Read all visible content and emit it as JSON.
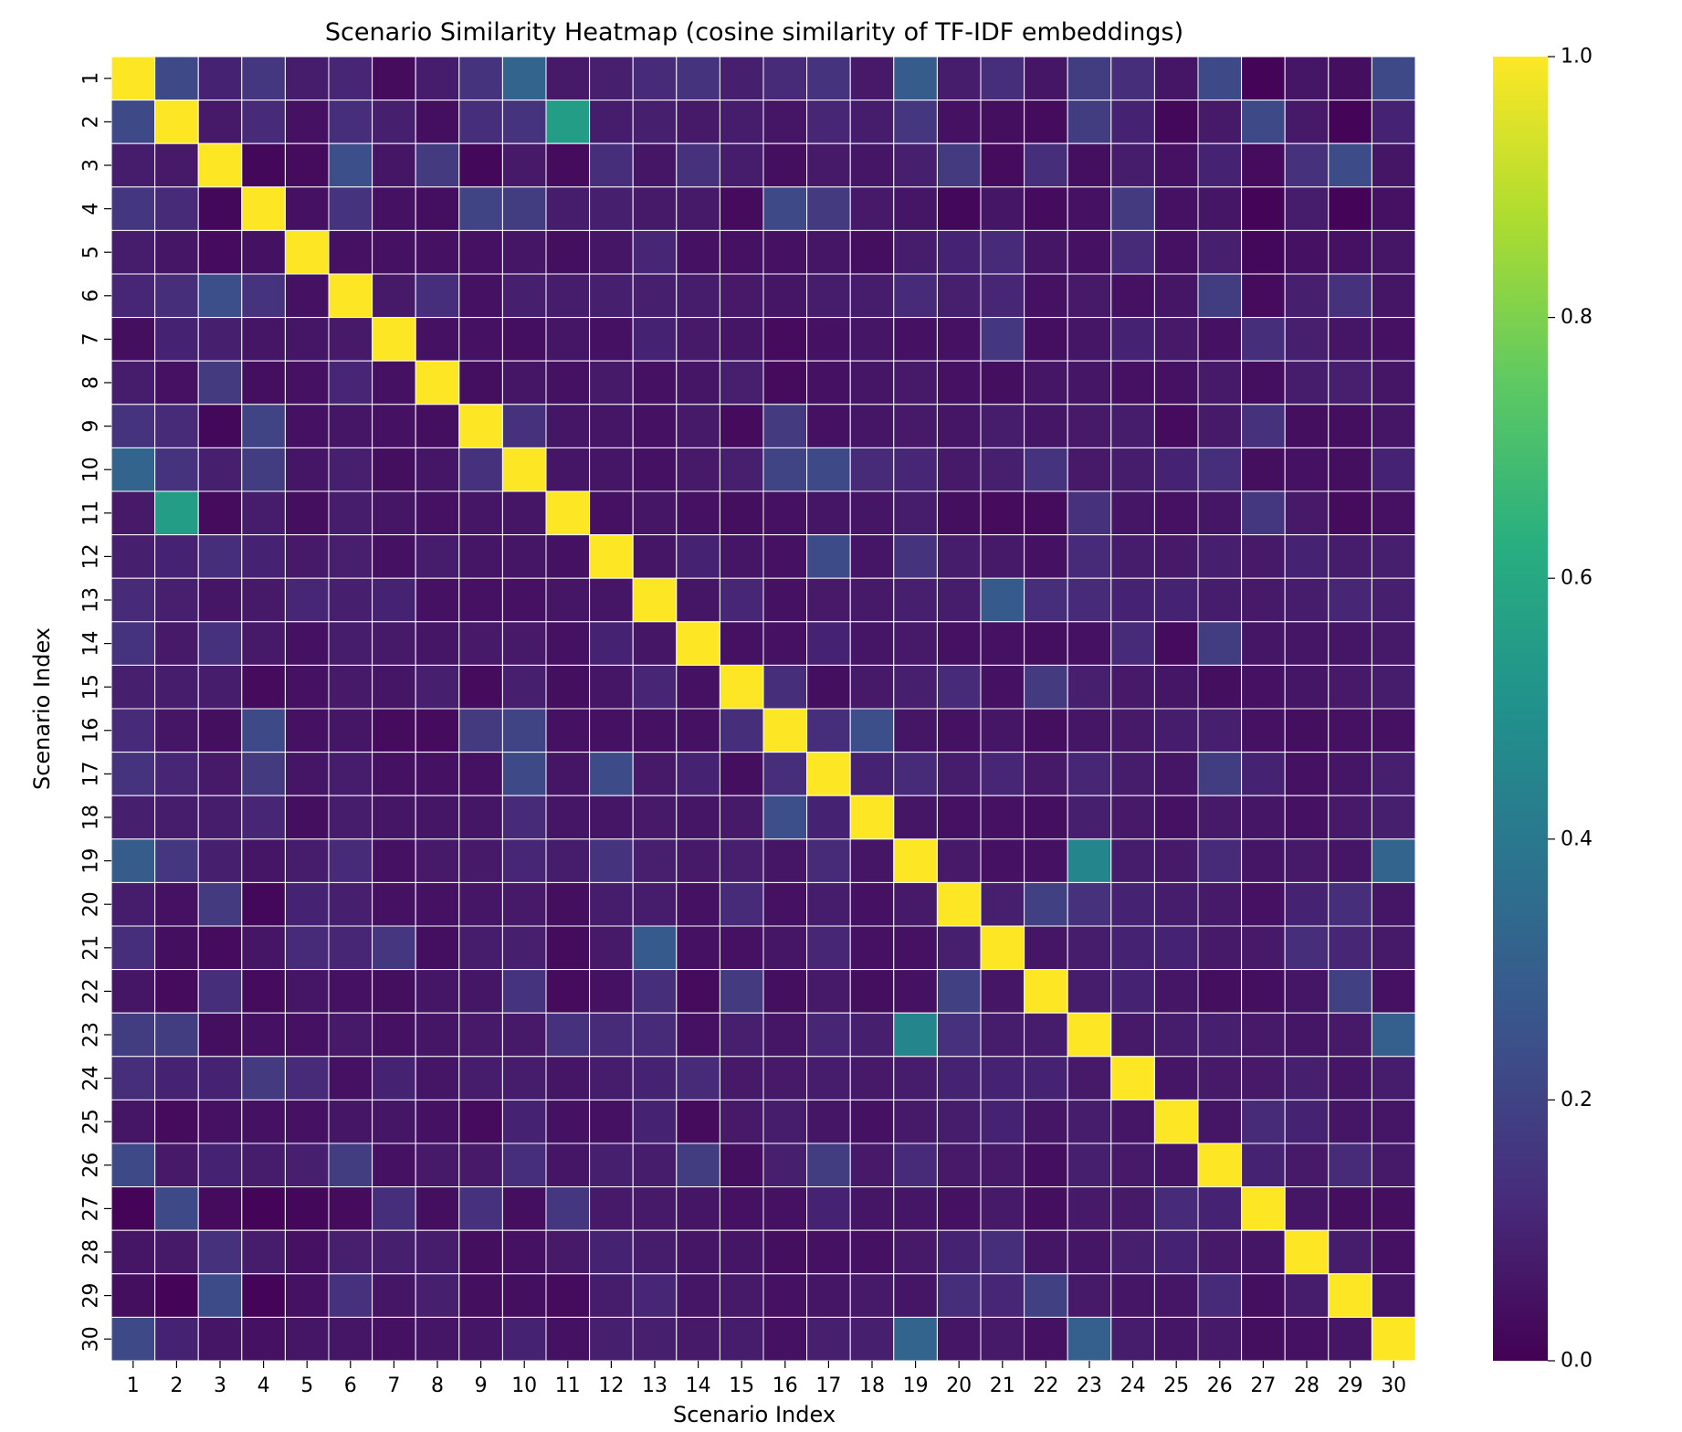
{
  "chart_data": {
    "type": "heatmap",
    "title": "Scenario Similarity Heatmap (cosine similarity of TF-IDF embeddings)",
    "xlabel": "Scenario Index",
    "ylabel": "Scenario Index",
    "x_categories": [
      "1",
      "2",
      "3",
      "4",
      "5",
      "6",
      "7",
      "8",
      "9",
      "10",
      "11",
      "12",
      "13",
      "14",
      "15",
      "16",
      "17",
      "18",
      "19",
      "20",
      "21",
      "22",
      "23",
      "24",
      "25",
      "26",
      "27",
      "28",
      "29",
      "30"
    ],
    "y_categories": [
      "1",
      "2",
      "3",
      "4",
      "5",
      "6",
      "7",
      "8",
      "9",
      "10",
      "11",
      "12",
      "13",
      "14",
      "15",
      "16",
      "17",
      "18",
      "19",
      "20",
      "21",
      "22",
      "23",
      "24",
      "25",
      "26",
      "27",
      "28",
      "29",
      "30"
    ],
    "colormap": "viridis",
    "vmin": 0.0,
    "vmax": 1.0,
    "colorbar_ticks": [
      "0.0",
      "0.2",
      "0.4",
      "0.6",
      "0.8",
      "1.0"
    ],
    "values": [
      [
        1.0,
        0.22,
        0.1,
        0.16,
        0.08,
        0.11,
        0.03,
        0.08,
        0.15,
        0.32,
        0.07,
        0.09,
        0.12,
        0.15,
        0.09,
        0.12,
        0.15,
        0.07,
        0.29,
        0.08,
        0.13,
        0.06,
        0.18,
        0.13,
        0.06,
        0.22,
        0.01,
        0.06,
        0.04,
        0.22
      ],
      [
        0.22,
        1.0,
        0.07,
        0.12,
        0.05,
        0.13,
        0.09,
        0.04,
        0.13,
        0.15,
        0.55,
        0.08,
        0.09,
        0.07,
        0.08,
        0.06,
        0.11,
        0.08,
        0.16,
        0.05,
        0.04,
        0.03,
        0.18,
        0.1,
        0.02,
        0.07,
        0.22,
        0.07,
        0.01,
        0.1
      ],
      [
        0.08,
        0.07,
        1.0,
        0.02,
        0.03,
        0.24,
        0.06,
        0.17,
        0.02,
        0.07,
        0.03,
        0.13,
        0.06,
        0.14,
        0.08,
        0.04,
        0.07,
        0.06,
        0.09,
        0.17,
        0.03,
        0.13,
        0.04,
        0.08,
        0.05,
        0.1,
        0.03,
        0.14,
        0.23,
        0.06
      ],
      [
        0.16,
        0.12,
        0.02,
        1.0,
        0.05,
        0.15,
        0.05,
        0.04,
        0.2,
        0.18,
        0.08,
        0.09,
        0.07,
        0.07,
        0.03,
        0.22,
        0.17,
        0.07,
        0.06,
        0.02,
        0.06,
        0.03,
        0.05,
        0.17,
        0.05,
        0.06,
        0.01,
        0.08,
        0.01,
        0.05
      ],
      [
        0.08,
        0.06,
        0.03,
        0.05,
        1.0,
        0.05,
        0.05,
        0.05,
        0.05,
        0.06,
        0.04,
        0.06,
        0.11,
        0.05,
        0.05,
        0.05,
        0.06,
        0.04,
        0.08,
        0.1,
        0.12,
        0.06,
        0.05,
        0.12,
        0.05,
        0.09,
        0.02,
        0.05,
        0.05,
        0.06
      ],
      [
        0.11,
        0.13,
        0.24,
        0.15,
        0.05,
        1.0,
        0.07,
        0.13,
        0.05,
        0.09,
        0.08,
        0.09,
        0.09,
        0.08,
        0.07,
        0.06,
        0.08,
        0.08,
        0.12,
        0.09,
        0.11,
        0.05,
        0.07,
        0.05,
        0.06,
        0.18,
        0.03,
        0.09,
        0.14,
        0.06
      ],
      [
        0.04,
        0.1,
        0.09,
        0.06,
        0.06,
        0.07,
        1.0,
        0.05,
        0.05,
        0.04,
        0.06,
        0.05,
        0.1,
        0.07,
        0.06,
        0.03,
        0.05,
        0.06,
        0.05,
        0.05,
        0.16,
        0.04,
        0.06,
        0.1,
        0.07,
        0.05,
        0.13,
        0.09,
        0.06,
        0.05
      ],
      [
        0.08,
        0.05,
        0.17,
        0.04,
        0.05,
        0.11,
        0.05,
        1.0,
        0.04,
        0.06,
        0.05,
        0.07,
        0.05,
        0.06,
        0.09,
        0.03,
        0.05,
        0.06,
        0.07,
        0.05,
        0.04,
        0.06,
        0.06,
        0.05,
        0.05,
        0.07,
        0.04,
        0.08,
        0.09,
        0.06
      ],
      [
        0.15,
        0.12,
        0.02,
        0.2,
        0.05,
        0.06,
        0.05,
        0.04,
        1.0,
        0.14,
        0.06,
        0.06,
        0.05,
        0.07,
        0.03,
        0.17,
        0.05,
        0.06,
        0.07,
        0.06,
        0.08,
        0.06,
        0.07,
        0.08,
        0.03,
        0.07,
        0.14,
        0.04,
        0.04,
        0.06
      ],
      [
        0.32,
        0.15,
        0.09,
        0.18,
        0.06,
        0.09,
        0.04,
        0.06,
        0.14,
        1.0,
        0.06,
        0.06,
        0.05,
        0.07,
        0.09,
        0.2,
        0.22,
        0.12,
        0.11,
        0.07,
        0.09,
        0.15,
        0.07,
        0.08,
        0.1,
        0.13,
        0.04,
        0.05,
        0.04,
        0.1
      ],
      [
        0.07,
        0.55,
        0.03,
        0.08,
        0.04,
        0.08,
        0.06,
        0.05,
        0.06,
        0.06,
        1.0,
        0.05,
        0.06,
        0.05,
        0.04,
        0.05,
        0.06,
        0.06,
        0.08,
        0.04,
        0.03,
        0.03,
        0.14,
        0.06,
        0.05,
        0.06,
        0.16,
        0.07,
        0.03,
        0.05
      ],
      [
        0.09,
        0.1,
        0.13,
        0.1,
        0.07,
        0.09,
        0.05,
        0.08,
        0.06,
        0.06,
        0.05,
        1.0,
        0.06,
        0.1,
        0.06,
        0.05,
        0.23,
        0.06,
        0.15,
        0.08,
        0.07,
        0.05,
        0.12,
        0.08,
        0.07,
        0.09,
        0.07,
        0.1,
        0.08,
        0.09
      ],
      [
        0.12,
        0.09,
        0.06,
        0.07,
        0.11,
        0.09,
        0.1,
        0.05,
        0.05,
        0.05,
        0.06,
        0.06,
        1.0,
        0.06,
        0.11,
        0.05,
        0.07,
        0.07,
        0.09,
        0.08,
        0.28,
        0.13,
        0.12,
        0.1,
        0.1,
        0.08,
        0.07,
        0.08,
        0.11,
        0.09
      ],
      [
        0.15,
        0.07,
        0.14,
        0.07,
        0.05,
        0.08,
        0.07,
        0.06,
        0.07,
        0.07,
        0.05,
        0.1,
        0.06,
        1.0,
        0.05,
        0.05,
        0.1,
        0.06,
        0.07,
        0.05,
        0.05,
        0.04,
        0.05,
        0.12,
        0.03,
        0.18,
        0.06,
        0.06,
        0.06,
        0.07
      ],
      [
        0.09,
        0.08,
        0.08,
        0.03,
        0.05,
        0.07,
        0.06,
        0.09,
        0.03,
        0.09,
        0.04,
        0.06,
        0.11,
        0.05,
        1.0,
        0.13,
        0.04,
        0.07,
        0.09,
        0.12,
        0.05,
        0.17,
        0.09,
        0.07,
        0.06,
        0.04,
        0.05,
        0.06,
        0.07,
        0.08
      ],
      [
        0.12,
        0.06,
        0.04,
        0.22,
        0.05,
        0.06,
        0.03,
        0.03,
        0.17,
        0.2,
        0.05,
        0.05,
        0.05,
        0.05,
        0.13,
        1.0,
        0.13,
        0.24,
        0.06,
        0.05,
        0.06,
        0.04,
        0.06,
        0.07,
        0.08,
        0.09,
        0.05,
        0.04,
        0.05,
        0.05
      ],
      [
        0.15,
        0.11,
        0.07,
        0.17,
        0.06,
        0.08,
        0.05,
        0.05,
        0.05,
        0.22,
        0.06,
        0.23,
        0.07,
        0.1,
        0.04,
        0.13,
        1.0,
        0.1,
        0.12,
        0.08,
        0.11,
        0.07,
        0.11,
        0.08,
        0.06,
        0.18,
        0.1,
        0.05,
        0.06,
        0.09
      ],
      [
        0.09,
        0.08,
        0.08,
        0.11,
        0.04,
        0.08,
        0.06,
        0.06,
        0.06,
        0.12,
        0.06,
        0.06,
        0.07,
        0.06,
        0.07,
        0.24,
        0.1,
        1.0,
        0.06,
        0.05,
        0.05,
        0.04,
        0.09,
        0.07,
        0.05,
        0.07,
        0.06,
        0.05,
        0.07,
        0.09
      ],
      [
        0.29,
        0.16,
        0.09,
        0.06,
        0.08,
        0.12,
        0.05,
        0.07,
        0.07,
        0.11,
        0.08,
        0.15,
        0.09,
        0.07,
        0.09,
        0.06,
        0.12,
        0.06,
        1.0,
        0.07,
        0.05,
        0.05,
        0.45,
        0.08,
        0.07,
        0.12,
        0.06,
        0.07,
        0.06,
        0.32
      ],
      [
        0.08,
        0.05,
        0.17,
        0.02,
        0.1,
        0.09,
        0.05,
        0.05,
        0.06,
        0.07,
        0.04,
        0.08,
        0.08,
        0.05,
        0.12,
        0.05,
        0.08,
        0.05,
        0.07,
        1.0,
        0.09,
        0.19,
        0.14,
        0.1,
        0.08,
        0.07,
        0.05,
        0.1,
        0.13,
        0.06
      ],
      [
        0.13,
        0.04,
        0.03,
        0.06,
        0.12,
        0.11,
        0.16,
        0.04,
        0.08,
        0.09,
        0.03,
        0.07,
        0.28,
        0.05,
        0.05,
        0.06,
        0.11,
        0.05,
        0.05,
        0.09,
        1.0,
        0.06,
        0.08,
        0.1,
        0.1,
        0.07,
        0.07,
        0.13,
        0.11,
        0.07
      ],
      [
        0.06,
        0.03,
        0.13,
        0.03,
        0.06,
        0.05,
        0.04,
        0.06,
        0.06,
        0.15,
        0.03,
        0.05,
        0.13,
        0.03,
        0.17,
        0.04,
        0.07,
        0.04,
        0.05,
        0.19,
        0.06,
        1.0,
        0.08,
        0.1,
        0.06,
        0.04,
        0.04,
        0.06,
        0.19,
        0.05
      ],
      [
        0.18,
        0.18,
        0.04,
        0.05,
        0.05,
        0.07,
        0.05,
        0.06,
        0.07,
        0.07,
        0.14,
        0.12,
        0.12,
        0.05,
        0.09,
        0.06,
        0.11,
        0.09,
        0.45,
        0.14,
        0.08,
        0.08,
        1.0,
        0.07,
        0.08,
        0.09,
        0.07,
        0.06,
        0.07,
        0.3
      ],
      [
        0.13,
        0.1,
        0.1,
        0.17,
        0.12,
        0.05,
        0.1,
        0.06,
        0.08,
        0.08,
        0.06,
        0.08,
        0.1,
        0.12,
        0.07,
        0.07,
        0.08,
        0.07,
        0.08,
        0.1,
        0.1,
        0.1,
        0.07,
        1.0,
        0.06,
        0.07,
        0.07,
        0.09,
        0.06,
        0.08
      ],
      [
        0.06,
        0.03,
        0.05,
        0.05,
        0.05,
        0.06,
        0.06,
        0.05,
        0.03,
        0.1,
        0.05,
        0.05,
        0.1,
        0.03,
        0.07,
        0.08,
        0.06,
        0.05,
        0.07,
        0.08,
        0.1,
        0.06,
        0.08,
        0.06,
        1.0,
        0.06,
        0.12,
        0.1,
        0.06,
        0.06
      ],
      [
        0.22,
        0.07,
        0.1,
        0.08,
        0.09,
        0.18,
        0.05,
        0.07,
        0.07,
        0.13,
        0.06,
        0.09,
        0.08,
        0.18,
        0.04,
        0.09,
        0.18,
        0.07,
        0.12,
        0.07,
        0.07,
        0.04,
        0.09,
        0.07,
        0.06,
        1.0,
        0.1,
        0.07,
        0.12,
        0.07
      ],
      [
        0.01,
        0.22,
        0.03,
        0.01,
        0.02,
        0.03,
        0.13,
        0.04,
        0.14,
        0.04,
        0.16,
        0.07,
        0.07,
        0.06,
        0.05,
        0.05,
        0.1,
        0.06,
        0.06,
        0.05,
        0.07,
        0.04,
        0.07,
        0.07,
        0.12,
        0.1,
        1.0,
        0.06,
        0.04,
        0.04
      ],
      [
        0.06,
        0.07,
        0.14,
        0.08,
        0.05,
        0.09,
        0.09,
        0.08,
        0.04,
        0.05,
        0.07,
        0.1,
        0.08,
        0.06,
        0.06,
        0.04,
        0.05,
        0.05,
        0.07,
        0.1,
        0.13,
        0.06,
        0.06,
        0.09,
        0.1,
        0.07,
        0.06,
        1.0,
        0.08,
        0.05
      ],
      [
        0.04,
        0.01,
        0.23,
        0.01,
        0.05,
        0.14,
        0.06,
        0.09,
        0.04,
        0.04,
        0.03,
        0.08,
        0.11,
        0.06,
        0.07,
        0.05,
        0.06,
        0.07,
        0.06,
        0.13,
        0.11,
        0.19,
        0.07,
        0.06,
        0.06,
        0.12,
        0.04,
        0.08,
        1.0,
        0.06
      ],
      [
        0.22,
        0.1,
        0.06,
        0.05,
        0.06,
        0.06,
        0.05,
        0.06,
        0.06,
        0.1,
        0.05,
        0.09,
        0.09,
        0.07,
        0.08,
        0.05,
        0.09,
        0.09,
        0.32,
        0.06,
        0.07,
        0.05,
        0.3,
        0.08,
        0.06,
        0.07,
        0.04,
        0.05,
        0.06,
        1.0
      ]
    ]
  }
}
